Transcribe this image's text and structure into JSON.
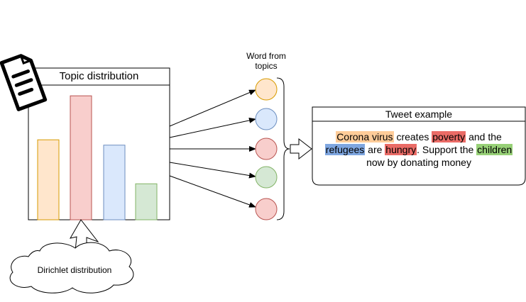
{
  "topic_panel": {
    "title": "Topic distribution",
    "bars": [
      {
        "value": 0.6,
        "fill": "#ffe6cc",
        "stroke": "#d79b00"
      },
      {
        "value": 0.93,
        "fill": "#f8cecc",
        "stroke": "#b85450"
      },
      {
        "value": 0.56,
        "fill": "#dae8fc",
        "stroke": "#6c8ebf"
      },
      {
        "value": 0.27,
        "fill": "#d5e8d4",
        "stroke": "#82b366"
      }
    ]
  },
  "words": {
    "label_line1": "Word from",
    "label_line2": "topics",
    "circles": [
      {
        "fill": "#ffe6cc",
        "stroke": "#d79b00"
      },
      {
        "fill": "#dae8fc",
        "stroke": "#6c8ebf"
      },
      {
        "fill": "#f8cecc",
        "stroke": "#b85450"
      },
      {
        "fill": "#d5e8d4",
        "stroke": "#82b366"
      },
      {
        "fill": "#f8cecc",
        "stroke": "#b85450"
      }
    ]
  },
  "tweet": {
    "title": "Tweet example",
    "segments": [
      {
        "text": "Corona virus",
        "color": "#ffcc99"
      },
      {
        "text": " creates ",
        "color": ""
      },
      {
        "text": "poverty",
        "color": "#ea6b66"
      },
      {
        "text": " and the ",
        "color": ""
      },
      {
        "text": "refugees",
        "color": "#7ea6e0"
      },
      {
        "text": " are ",
        "color": ""
      },
      {
        "text": "hungry",
        "color": "#ea6b66"
      },
      {
        "text": ". Support the ",
        "color": ""
      },
      {
        "text": "children",
        "color": "#97d077"
      },
      {
        "text": " now by donating money",
        "color": ""
      }
    ]
  },
  "cloud": {
    "label": "Dirichlet distribution"
  },
  "icons": [
    "document-icon"
  ]
}
